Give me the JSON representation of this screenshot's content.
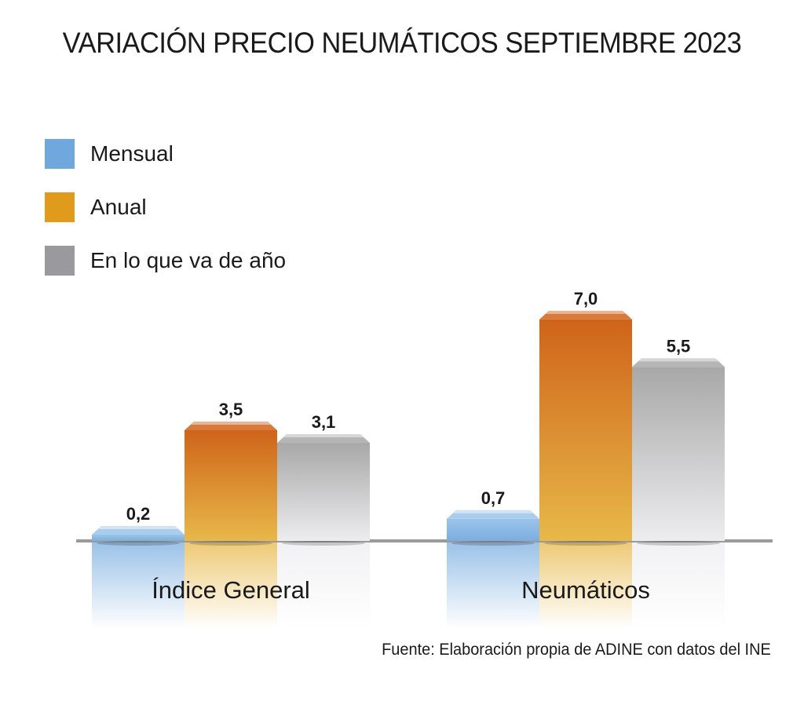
{
  "chart_data": {
    "type": "bar",
    "title": "VARIACIÓN PRECIO NEUMÁTICOS SEPTIEMBRE 2023",
    "categories": [
      "Índice General",
      "Neumáticos"
    ],
    "series": [
      {
        "name": "Mensual",
        "values": [
          0.2,
          0.7
        ],
        "labels": [
          "0,2",
          "0,7"
        ],
        "color": "#6fa8dc",
        "top": "#9cc4ea",
        "bottom": "#7aaee0"
      },
      {
        "name": "Anual",
        "values": [
          3.5,
          7.0
        ],
        "labels": [
          "3,5",
          "7,0"
        ],
        "color": "#e09a1c",
        "top": "#cf641a",
        "bottom": "#e8b849"
      },
      {
        "name": "En lo que va de año",
        "values": [
          3.1,
          5.5
        ],
        "labels": [
          "3,1",
          "5,5"
        ],
        "color": "#9a9a9e",
        "top": "#a8a8a8",
        "bottom": "#ededf0"
      }
    ],
    "xlabel": "",
    "ylabel": "",
    "ylim": [
      0,
      7.5
    ],
    "grid": false,
    "legend": "top-left",
    "source": "Fuente: Elaboración propia de ADINE con datos del INE"
  }
}
